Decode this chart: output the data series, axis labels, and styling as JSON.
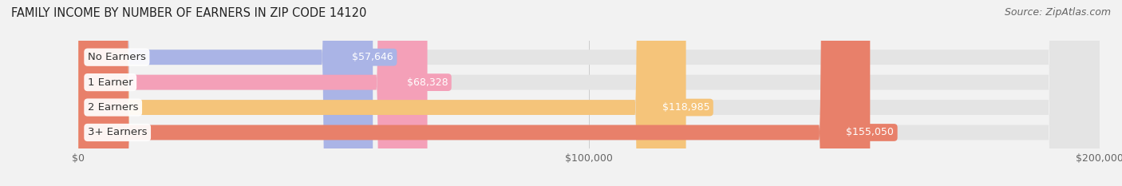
{
  "title": "FAMILY INCOME BY NUMBER OF EARNERS IN ZIP CODE 14120",
  "source": "Source: ZipAtlas.com",
  "categories": [
    "No Earners",
    "1 Earner",
    "2 Earners",
    "3+ Earners"
  ],
  "values": [
    57646,
    68328,
    118985,
    155050
  ],
  "bar_colors": [
    "#aab4e6",
    "#f4a0b8",
    "#f5c47a",
    "#e8806a"
  ],
  "value_label_bg_colors": [
    "#aab4e6",
    "#f4a0b8",
    "#f5c47a",
    "#e8806a"
  ],
  "value_labels": [
    "$57,646",
    "$68,328",
    "$118,985",
    "$155,050"
  ],
  "xlim": [
    0,
    200000
  ],
  "xticks": [
    0,
    100000,
    200000
  ],
  "xtick_labels": [
    "$0",
    "$100,000",
    "$200,000"
  ],
  "background_color": "#f2f2f2",
  "bar_bg_color": "#e4e4e4",
  "title_fontsize": 10.5,
  "source_fontsize": 9,
  "label_fontsize": 9.5,
  "value_fontsize": 9,
  "tick_fontsize": 9
}
